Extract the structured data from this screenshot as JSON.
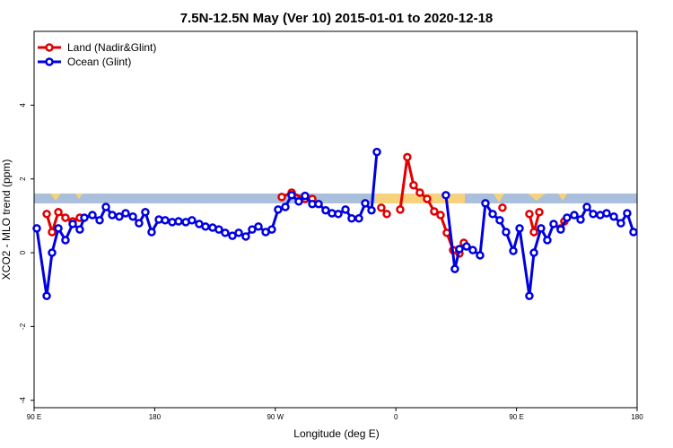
{
  "chart_data": {
    "type": "line",
    "title": "7.5N-12.5N May (Ver 10)   2015-01-01 to 2020-12-18",
    "x_label": "Longitude (deg E)",
    "y_label": "XCO2 - MLO trend (ppm)",
    "xlim": [
      90,
      540
    ],
    "ylim": [
      -4.2,
      6
    ],
    "xticks": [
      {
        "value": 90,
        "label": "90 E"
      },
      180,
      {
        "value": 270,
        "label": "90 W"
      },
      {
        "value": 360,
        "label": "0"
      },
      {
        "value": 450,
        "label": "90 E"
      },
      {
        "value": 540,
        "label": "180"
      }
    ],
    "yticks": [
      -4,
      -2,
      0,
      2,
      4
    ],
    "legend": "top-left",
    "series": [
      {
        "name": "Land (Nadir&Glint)",
        "color": "#e00000",
        "x": [
          99.4,
          103.4,
          108.1,
          113.4,
          118.8,
          124.1,
          null,
          274.8,
          282.2,
          292.2,
          297.6,
          null,
          349.1,
          353.2,
          null,
          363.2,
          368.5,
          373.2,
          377.9,
          383.3,
          388.6,
          393.3,
          398.0,
          402.7,
          407.4,
          410.7,
          null,
          439.5,
          null,
          459.6,
          463.0,
          467.0,
          null,
          483.0,
          485.7
        ],
        "values": [
          1.05,
          0.56,
          1.1,
          0.95,
          0.85,
          0.95,
          null,
          1.51,
          1.63,
          1.46,
          1.46,
          null,
          1.22,
          1.05,
          null,
          1.17,
          2.59,
          1.83,
          1.63,
          1.46,
          1.12,
          1.02,
          0.54,
          0.07,
          -0.02,
          0.27,
          null,
          1.22,
          null,
          1.05,
          0.56,
          1.1,
          null,
          0.66,
          0.85
        ]
      },
      {
        "name": "Ocean (Glint)",
        "color": "#0000e0",
        "x": [
          92.0,
          99.4,
          103.4,
          108.1,
          113.4,
          118.8,
          124.1,
          127.5,
          133.5,
          138.9,
          143.6,
          148.3,
          153.6,
          158.3,
          163.7,
          168.3,
          173.0,
          177.7,
          183.1,
          187.8,
          193.1,
          197.8,
          203.2,
          207.8,
          213.2,
          217.9,
          223.2,
          227.9,
          232.6,
          238.0,
          242.7,
          248.0,
          252.7,
          257.4,
          262.8,
          267.4,
          272.1,
          277.5,
          282.2,
          287.5,
          292.2,
          297.6,
          302.3,
          307.6,
          312.3,
          317.0,
          322.4,
          327.0,
          332.4,
          337.1,
          341.8,
          345.8,
          null,
          397.3,
          404.0,
          407.4,
          412.7,
          417.4,
          422.8,
          426.8,
          432.2,
          437.5,
          442.2,
          447.6,
          452.3,
          459.6,
          463.0,
          468.3,
          473.0,
          477.7,
          483.0,
          487.7,
          493.1,
          497.8,
          502.5,
          507.2,
          512.5,
          517.2,
          522.6,
          527.9,
          532.6,
          537.3
        ],
        "values": [
          0.66,
          -1.17,
          0,
          0.66,
          0.34,
          0.78,
          0.63,
          0.95,
          1.02,
          0.88,
          1.24,
          1.02,
          0.98,
          1.07,
          0.98,
          0.8,
          1.1,
          0.56,
          0.9,
          0.88,
          0.83,
          0.85,
          0.83,
          0.88,
          0.78,
          0.71,
          0.68,
          0.63,
          0.54,
          0.46,
          0.54,
          0.44,
          0.63,
          0.71,
          0.56,
          0.63,
          1.17,
          1.24,
          1.56,
          1.39,
          1.54,
          1.32,
          1.32,
          1.15,
          1.07,
          1.05,
          1.17,
          0.93,
          0.93,
          1.34,
          1.15,
          2.73,
          null,
          1.56,
          -0.44,
          0.1,
          0.17,
          0.07,
          -0.07,
          1.34,
          1.05,
          0.88,
          0.56,
          0.05,
          0.66,
          -1.17,
          0,
          0.66,
          0.34,
          0.78,
          0.63,
          0.95,
          1.02,
          0.9,
          1.24,
          1.05,
          1.02,
          1.07,
          0.98,
          0.8,
          1.07,
          0.56
        ]
      }
    ]
  }
}
